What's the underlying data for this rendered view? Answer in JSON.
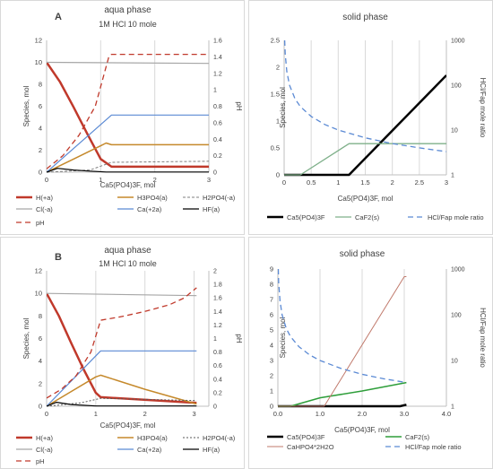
{
  "chart_data": [
    {
      "panel_letter": "A",
      "type": "line",
      "title": "aqua phase",
      "subtitle": "1M HCl 10 mole",
      "xlabel": "Ca5(PO4)3F, mol",
      "ylabel": "Species, mol",
      "y2label": "pH",
      "xlim": [
        0,
        3
      ],
      "ylim": [
        0,
        12
      ],
      "y2lim": [
        0,
        1.6
      ],
      "xticks": [
        "0",
        "1",
        "2",
        "3"
      ],
      "yticks": [
        "0",
        "2",
        "4",
        "6",
        "8",
        "10",
        "12"
      ],
      "y2ticks": [
        "0",
        "0.2",
        "0.4",
        "0.6",
        "0.8",
        "1",
        "1.2",
        "1.4",
        "1.6"
      ],
      "grid": "vertical",
      "legend_position": "bottom",
      "series": [
        {
          "name": "H(+a)",
          "color": "#c0392b",
          "dash": "none",
          "width": 2.5,
          "axis": "left",
          "x": [
            0,
            0.25,
            0.5,
            0.75,
            1.0,
            1.2,
            3.0
          ],
          "y": [
            10,
            8.2,
            5.9,
            3.5,
            1.2,
            0.5,
            0.5
          ]
        },
        {
          "name": "H3PO4(a)",
          "color": "#c5892b",
          "dash": "none",
          "width": 1.5,
          "axis": "left",
          "x": [
            0,
            0.5,
            1.0,
            1.1,
            1.2,
            3.0
          ],
          "y": [
            0,
            1.2,
            2.4,
            2.65,
            2.5,
            2.5
          ]
        },
        {
          "name": "H2PO4(-a)",
          "color": "#7f7f7f",
          "dash": "3,2",
          "width": 1.0,
          "axis": "left",
          "x": [
            0,
            0.8,
            1.2,
            3.0
          ],
          "y": [
            0,
            0.2,
            0.9,
            1.0
          ]
        },
        {
          "name": "Cl(-a)",
          "color": "#a6a6a6",
          "dash": "none",
          "width": 1.2,
          "axis": "left",
          "x": [
            0,
            3.0
          ],
          "y": [
            10,
            9.9
          ]
        },
        {
          "name": "Ca(+2a)",
          "color": "#5b8ad4",
          "dash": "none",
          "width": 1.2,
          "axis": "left",
          "x": [
            0,
            1.2,
            3.0
          ],
          "y": [
            0,
            5.2,
            5.2
          ]
        },
        {
          "name": "HF(a)",
          "color": "#000000",
          "dash": "none",
          "width": 1.2,
          "axis": "left",
          "x": [
            0,
            0.2,
            0.5,
            0.8,
            1.1,
            3.0
          ],
          "y": [
            0,
            0.35,
            0.2,
            0.1,
            0.02,
            0.02
          ]
        },
        {
          "name": "pH",
          "color": "#c0392b",
          "dash": "6,4",
          "width": 1.3,
          "axis": "right",
          "x": [
            0,
            0.3,
            0.6,
            0.9,
            1.15,
            1.2,
            3.0
          ],
          "y": [
            0.04,
            0.2,
            0.45,
            0.8,
            1.4,
            1.43,
            1.43
          ]
        }
      ],
      "legend": [
        {
          "label": "H(+a)",
          "color": "#c0392b",
          "dash": "none",
          "width": 2.5
        },
        {
          "label": "H3PO4(a)",
          "color": "#c5892b",
          "dash": "none",
          "width": 1.5
        },
        {
          "label": "H2PO4(-a)",
          "color": "#7f7f7f",
          "dash": "3,2",
          "width": 1.0
        },
        {
          "label": "Cl(-a)",
          "color": "#a6a6a6",
          "dash": "none",
          "width": 1.2
        },
        {
          "label": "Ca(+2a)",
          "color": "#5b8ad4",
          "dash": "none",
          "width": 1.2
        },
        {
          "label": "HF(a)",
          "color": "#000000",
          "dash": "none",
          "width": 1.2
        },
        {
          "label": "pH",
          "color": "#c0392b",
          "dash": "6,4",
          "width": 1.3
        }
      ]
    },
    {
      "panel_letter": "",
      "type": "line",
      "title": "solid phase",
      "subtitle": "",
      "xlabel": "Ca5(PO4)3F, mol",
      "ylabel": "Species, mol",
      "y2label": "HCl/Fap mole ratio",
      "xlim": [
        0,
        3
      ],
      "ylim": [
        0,
        2.5
      ],
      "y2scale": "log",
      "y2lim": [
        1,
        1000
      ],
      "xticks": [
        "0",
        "0.5",
        "1",
        "1.5",
        "2",
        "2.5",
        "3"
      ],
      "yticks": [
        "0",
        "0.5",
        "1",
        "1.5",
        "2",
        "2.5"
      ],
      "y2ticks": [
        "1",
        "10",
        "100",
        "1000"
      ],
      "grid": "vertical",
      "legend_position": "bottom",
      "series": [
        {
          "name": "Ca5(PO4)3F",
          "color": "#000000",
          "dash": "none",
          "width": 2.5,
          "axis": "left",
          "x": [
            0,
            1.2,
            3.0
          ],
          "y": [
            0,
            0,
            1.85
          ]
        },
        {
          "name": "CaF2(s)",
          "color": "#7fb08a",
          "dash": "none",
          "width": 1.3,
          "axis": "left",
          "x": [
            0,
            0.3,
            1.2,
            3.0
          ],
          "y": [
            0,
            0,
            0.58,
            0.58
          ]
        },
        {
          "name": "HCl/Fap mole ratio",
          "color": "#5b8ad4",
          "dash": "6,4",
          "width": 1.3,
          "axis": "right",
          "x": [
            0.01,
            0.02,
            0.05,
            0.1,
            0.2,
            0.3,
            0.5,
            0.75,
            1.0,
            1.5,
            2.0,
            2.5,
            3.0
          ],
          "y": [
            1000,
            500,
            200,
            100,
            50,
            33.3,
            20,
            13.3,
            10,
            6.7,
            5,
            4,
            3.3
          ]
        }
      ],
      "legend": [
        {
          "label": "Ca5(PO4)3F",
          "color": "#000000",
          "dash": "none",
          "width": 2.5
        },
        {
          "label": "CaF2(s)",
          "color": "#7fb08a",
          "dash": "none",
          "width": 1.3
        },
        {
          "label": "HCl/Fap mole ratio",
          "color": "#5b8ad4",
          "dash": "6,4",
          "width": 1.3
        }
      ]
    },
    {
      "panel_letter": "B",
      "type": "line",
      "title": "aqua phase",
      "subtitle": "1M HCl  10 mole",
      "xlabel": "Ca5(PO4)3F, mol",
      "ylabel": "Species, mol",
      "y2label": "pH",
      "xlim": [
        0,
        3.3
      ],
      "ylim": [
        0,
        12
      ],
      "y2lim": [
        0,
        2
      ],
      "xticks": [
        "0",
        "1",
        "2",
        "3"
      ],
      "yticks": [
        "0",
        "2",
        "4",
        "6",
        "8",
        "10",
        "12"
      ],
      "y2ticks": [
        "0",
        "0.2",
        "0.4",
        "0.6",
        "0.8",
        "1",
        "1.2",
        "1.4",
        "1.6",
        "1.8",
        "2"
      ],
      "grid": "vertical",
      "legend_position": "bottom",
      "series": [
        {
          "name": "H(+a)",
          "color": "#c0392b",
          "dash": "none",
          "width": 2.5,
          "axis": "left",
          "x": [
            0,
            0.25,
            0.5,
            0.75,
            1.0,
            1.1,
            3.05
          ],
          "y": [
            10,
            8.0,
            5.6,
            3.3,
            1.2,
            0.8,
            0.3
          ]
        },
        {
          "name": "H3PO4(a)",
          "color": "#c5892b",
          "dash": "none",
          "width": 1.5,
          "axis": "left",
          "x": [
            0,
            0.5,
            1.0,
            1.1,
            2.0,
            3.05
          ],
          "y": [
            0,
            1.3,
            2.6,
            2.75,
            1.5,
            0.2
          ]
        },
        {
          "name": "H2PO4(-a)",
          "color": "#595959",
          "dash": "2,2",
          "width": 1.0,
          "axis": "left",
          "x": [
            0,
            0.7,
            1.1,
            3.05
          ],
          "y": [
            0,
            0.3,
            0.7,
            0.5
          ]
        },
        {
          "name": "Cl(-a)",
          "color": "#a6a6a6",
          "dash": "none",
          "width": 1.2,
          "axis": "left",
          "x": [
            0,
            3.05
          ],
          "y": [
            10,
            9.8
          ]
        },
        {
          "name": "Ca(+2a)",
          "color": "#5b8ad4",
          "dash": "none",
          "width": 1.2,
          "axis": "left",
          "x": [
            0,
            1.1,
            3.05
          ],
          "y": [
            0,
            4.9,
            4.9
          ]
        },
        {
          "name": "HF(a)",
          "color": "#000000",
          "dash": "none",
          "width": 1.2,
          "axis": "left",
          "x": [
            0,
            0.2,
            0.5,
            1.0,
            3.05
          ],
          "y": [
            0,
            0.35,
            0.15,
            0.02,
            0.02
          ]
        },
        {
          "name": "pH",
          "color": "#c0392b",
          "dash": "6,4",
          "width": 1.3,
          "axis": "right",
          "x": [
            0,
            0.3,
            0.6,
            0.9,
            1.1,
            1.5,
            2.0,
            2.5,
            2.8,
            3.05
          ],
          "y": [
            0.12,
            0.25,
            0.45,
            0.8,
            1.27,
            1.32,
            1.4,
            1.5,
            1.6,
            1.75
          ]
        }
      ],
      "legend": [
        {
          "label": "H(+a)",
          "color": "#c0392b",
          "dash": "none",
          "width": 2.5
        },
        {
          "label": "H3PO4(a)",
          "color": "#c5892b",
          "dash": "none",
          "width": 1.5
        },
        {
          "label": "H2PO4(-a)",
          "color": "#595959",
          "dash": "2,2",
          "width": 1.0
        },
        {
          "label": "Cl(-a)",
          "color": "#a6a6a6",
          "dash": "none",
          "width": 1.2
        },
        {
          "label": "Ca(+2a)",
          "color": "#5b8ad4",
          "dash": "none",
          "width": 1.2
        },
        {
          "label": "HF(a)",
          "color": "#000000",
          "dash": "none",
          "width": 1.2
        },
        {
          "label": "pH",
          "color": "#c0392b",
          "dash": "6,4",
          "width": 1.3
        }
      ]
    },
    {
      "panel_letter": "",
      "type": "line",
      "title": "solid phase",
      "subtitle": "",
      "xlabel": "Ca5(PO4)3F, mol",
      "ylabel": "Species, mol",
      "y2label": "HCl/Fap mole ratio",
      "xlim": [
        0,
        4
      ],
      "ylim": [
        0,
        9
      ],
      "y2scale": "log",
      "y2lim": [
        1,
        1000
      ],
      "xticks": [
        "0.0",
        "1.0",
        "2.0",
        "3.0",
        "4.0"
      ],
      "yticks": [
        "0",
        "1",
        "2",
        "3",
        "4",
        "5",
        "6",
        "7",
        "8",
        "9"
      ],
      "y2ticks": [
        "1",
        "10",
        "100",
        "1000"
      ],
      "grid": "vertical",
      "legend_position": "bottom",
      "series": [
        {
          "name": "Ca5(PO4)3F",
          "color": "#000000",
          "dash": "none",
          "width": 2.5,
          "axis": "left",
          "x": [
            0,
            2.9,
            3.05
          ],
          "y": [
            0,
            0,
            0.1
          ]
        },
        {
          "name": "CaF2(s)",
          "color": "#2e9e3a",
          "dash": "none",
          "width": 1.5,
          "axis": "left",
          "x": [
            0,
            0.3,
            1.0,
            2.0,
            3.05
          ],
          "y": [
            0,
            0,
            0.55,
            1.0,
            1.55
          ]
        },
        {
          "name": "CaHPO4*2H2O",
          "color": "#c0796b",
          "dash": "none",
          "width": 1.0,
          "axis": "left",
          "x": [
            0,
            1.1,
            3.0,
            3.05
          ],
          "y": [
            0,
            0,
            8.5,
            8.5
          ]
        },
        {
          "name": "HCl/Fap mole ratio",
          "color": "#5b8ad4",
          "dash": "6,4",
          "width": 1.3,
          "axis": "right",
          "x": [
            0.01,
            0.02,
            0.05,
            0.1,
            0.2,
            0.3,
            0.5,
            0.75,
            1.0,
            1.5,
            2.0,
            2.5,
            3.05
          ],
          "y": [
            1000,
            500,
            200,
            100,
            50,
            33.3,
            20,
            13.3,
            10,
            6.7,
            5,
            4,
            3.3
          ]
        }
      ],
      "legend": [
        {
          "label": "Ca5(PO4)3F",
          "color": "#000000",
          "dash": "none",
          "width": 2.5
        },
        {
          "label": "CaF2(s)",
          "color": "#2e9e3a",
          "dash": "none",
          "width": 1.5
        },
        {
          "label": "CaHPO4*2H2O",
          "color": "#c0796b",
          "dash": "none",
          "width": 1.0
        },
        {
          "label": "HCl/Fap mole ratio",
          "color": "#5b8ad4",
          "dash": "6,4",
          "width": 1.3
        }
      ]
    }
  ]
}
